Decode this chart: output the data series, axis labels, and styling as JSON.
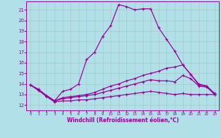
{
  "xlabel": "Windchill (Refroidissement éolien,°C)",
  "background_color": "#b2e0e8",
  "grid_color": "#c8d8d8",
  "line_color": "#990099",
  "xlim_min": -0.5,
  "xlim_max": 23.5,
  "ylim_min": 11.5,
  "ylim_max": 21.8,
  "xticks": [
    0,
    1,
    2,
    3,
    4,
    5,
    6,
    7,
    8,
    9,
    10,
    11,
    12,
    13,
    14,
    15,
    16,
    17,
    18,
    19,
    20,
    21,
    22,
    23
  ],
  "yticks": [
    12,
    13,
    14,
    15,
    16,
    17,
    18,
    19,
    20,
    21
  ],
  "series": [
    {
      "x": [
        0,
        1,
        2,
        3,
        4,
        5,
        6,
        7,
        8,
        9,
        10,
        11,
        12,
        13,
        14,
        15,
        16,
        17,
        18,
        19,
        20,
        21,
        22,
        23
      ],
      "y": [
        13.9,
        13.5,
        12.9,
        12.4,
        13.3,
        13.5,
        14.0,
        16.3,
        17.0,
        18.5,
        19.5,
        21.5,
        21.3,
        21.0,
        21.1,
        21.1,
        19.3,
        18.2,
        17.1,
        15.8,
        14.9,
        13.9,
        13.8,
        13.0
      ]
    },
    {
      "x": [
        0,
        1,
        2,
        3,
        4,
        5,
        6,
        7,
        8,
        9,
        10,
        11,
        12,
        13,
        14,
        15,
        16,
        17,
        18,
        19,
        20,
        21,
        22,
        23
      ],
      "y": [
        13.9,
        13.4,
        12.9,
        12.4,
        12.7,
        12.8,
        12.9,
        13.0,
        13.2,
        13.5,
        13.8,
        14.0,
        14.3,
        14.5,
        14.8,
        15.0,
        15.2,
        15.5,
        15.6,
        15.8,
        14.9,
        14.0,
        13.8,
        13.1
      ]
    },
    {
      "x": [
        0,
        1,
        2,
        3,
        4,
        5,
        6,
        7,
        8,
        9,
        10,
        11,
        12,
        13,
        14,
        15,
        16,
        17,
        18,
        19,
        20,
        21,
        22,
        23
      ],
      "y": [
        13.9,
        13.4,
        12.9,
        12.4,
        12.6,
        12.7,
        12.8,
        12.9,
        13.0,
        13.2,
        13.4,
        13.6,
        13.8,
        14.0,
        14.2,
        14.4,
        14.3,
        14.3,
        14.2,
        14.8,
        14.5,
        13.8,
        13.7,
        13.0
      ]
    },
    {
      "x": [
        0,
        1,
        2,
        3,
        4,
        5,
        6,
        7,
        8,
        9,
        10,
        11,
        12,
        13,
        14,
        15,
        16,
        17,
        18,
        19,
        20,
        21,
        22,
        23
      ],
      "y": [
        13.9,
        13.4,
        12.8,
        12.3,
        12.4,
        12.4,
        12.5,
        12.5,
        12.6,
        12.7,
        12.8,
        12.9,
        13.0,
        13.1,
        13.2,
        13.3,
        13.2,
        13.1,
        13.0,
        13.1,
        13.0,
        13.0,
        13.0,
        13.0
      ]
    }
  ]
}
